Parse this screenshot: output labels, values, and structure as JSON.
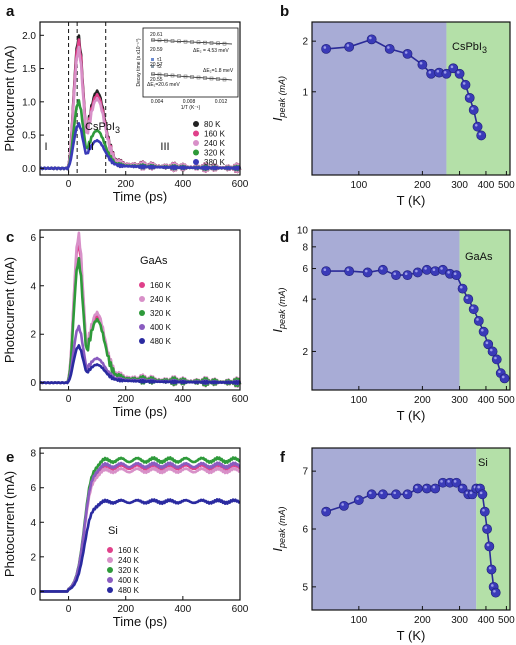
{
  "chart_data": [
    {
      "id": "a",
      "type": "line",
      "panel_label": "a",
      "xlabel": "Time (ps)",
      "ylabel": "Photocurrent (mA)",
      "xlim": [
        -100,
        600
      ],
      "ylim": [
        -0.1,
        2.2
      ],
      "xticks": [
        "0",
        "200",
        "400",
        "600"
      ],
      "yticks": [
        "0.0",
        "0.5",
        "1.0",
        "1.5",
        "2.0"
      ],
      "material": "CsPbI3",
      "regions": [
        "I",
        "II",
        "III"
      ],
      "region_bounds_ps": [
        0,
        30,
        130
      ],
      "series": [
        {
          "name": "80 K",
          "color": "#222222",
          "peak": 1.8,
          "hump": 1.05,
          "floor": 0.18
        },
        {
          "name": "160 K",
          "color": "#e0408a",
          "peak": 1.75,
          "hump": 1.0,
          "floor": 0.17
        },
        {
          "name": "240 K",
          "color": "#d890c8",
          "peak": 1.65,
          "hump": 0.95,
          "floor": 0.16
        },
        {
          "name": "320 K",
          "color": "#2e9a3a",
          "peak": 0.9,
          "hump": 0.5,
          "floor": 0.12
        },
        {
          "name": "380 K",
          "color": "#3a3ab8",
          "peak": 0.58,
          "hump": 0.36,
          "floor": 0.1
        }
      ],
      "inset": {
        "xlabel": "1/T (K⁻¹)",
        "ylabel": "Decay time (s x10⁻¹°)",
        "xticks": [
          "0.004",
          "0.008",
          "0.012"
        ],
        "yticks": [
          "20.61",
          "20.59",
          "20.57",
          "20.55"
        ],
        "legend": [
          "τ1",
          "τ2"
        ],
        "annotations": [
          "ΔE₂ = 4.53 meV",
          "ΔE₂=1.8 meV",
          "ΔE₁=20.6 meV"
        ]
      }
    },
    {
      "id": "b",
      "type": "scatter",
      "panel_label": "b",
      "xlabel": "T (K)",
      "ylabel": "I_peak (mA)",
      "xscale": "log",
      "yscale": "log",
      "xlim": [
        60,
        520
      ],
      "ylim": [
        0.32,
        2.6
      ],
      "xticks": [
        100,
        200,
        300,
        400,
        500
      ],
      "yticks": [
        1,
        2
      ],
      "material": "CsPbI3",
      "phase_boundary_K": 260,
      "phase_colors": [
        "#a8acd6",
        "#b4e0a8"
      ],
      "x": [
        70,
        90,
        115,
        140,
        170,
        200,
        220,
        240,
        260,
        280,
        300,
        320,
        335,
        350,
        365,
        380
      ],
      "y": [
        1.8,
        1.85,
        2.05,
        1.8,
        1.68,
        1.45,
        1.28,
        1.3,
        1.28,
        1.38,
        1.28,
        1.1,
        0.92,
        0.78,
        0.62,
        0.55
      ]
    },
    {
      "id": "c",
      "type": "line",
      "panel_label": "c",
      "xlabel": "Time (ps)",
      "ylabel": "Photocurrent (mA)",
      "xlim": [
        -100,
        600
      ],
      "ylim": [
        -0.3,
        6.3
      ],
      "xticks": [
        "0",
        "200",
        "400",
        "600"
      ],
      "yticks": [
        "0",
        "2",
        "4",
        "6"
      ],
      "material": "GaAs",
      "series": [
        {
          "name": "160 K",
          "color": "#e0408a",
          "peak": 5.3,
          "hump": 2.4,
          "floor": 0.6
        },
        {
          "name": "240 K",
          "color": "#d890c8",
          "peak": 5.5,
          "hump": 2.5,
          "floor": 0.65
        },
        {
          "name": "320 K",
          "color": "#2e9a3a",
          "peak": 4.6,
          "hump": 2.3,
          "floor": 0.5
        },
        {
          "name": "400 K",
          "color": "#8a5cc0",
          "peak": 2.0,
          "hump": 0.8,
          "floor": 0.35
        },
        {
          "name": "480 K",
          "color": "#2a2aa0",
          "peak": 1.3,
          "hump": 0.6,
          "floor": 0.25
        }
      ]
    },
    {
      "id": "d",
      "type": "scatter",
      "panel_label": "d",
      "xlabel": "T (K)",
      "ylabel": "I_peak (mA)",
      "xscale": "log",
      "yscale": "log",
      "xlim": [
        60,
        520
      ],
      "ylim": [
        1.2,
        10
      ],
      "xticks": [
        100,
        200,
        300,
        400,
        500
      ],
      "yticks": [
        2,
        4,
        6,
        8,
        10
      ],
      "material": "GaAs",
      "phase_boundary_K": 300,
      "phase_colors": [
        "#a8acd6",
        "#b4e0a8"
      ],
      "x": [
        70,
        90,
        110,
        130,
        150,
        170,
        190,
        210,
        230,
        250,
        270,
        290,
        310,
        330,
        350,
        370,
        390,
        410,
        430,
        450,
        470,
        490
      ],
      "y": [
        5.8,
        5.8,
        5.7,
        5.9,
        5.5,
        5.5,
        5.7,
        5.9,
        5.8,
        5.9,
        5.6,
        5.5,
        4.6,
        4.0,
        3.5,
        3.0,
        2.6,
        2.2,
        2.0,
        1.8,
        1.5,
        1.4
      ]
    },
    {
      "id": "e",
      "type": "line",
      "panel_label": "e",
      "xlabel": "Time (ps)",
      "ylabel": "Photocurrent (mA)",
      "xlim": [
        -100,
        600
      ],
      "ylim": [
        -0.5,
        8.3
      ],
      "xticks": [
        "0",
        "200",
        "400",
        "600"
      ],
      "yticks": [
        "0",
        "2",
        "4",
        "6",
        "8"
      ],
      "material": "Si",
      "series": [
        {
          "name": "160 K",
          "color": "#e0408a",
          "plateau": 7.2
        },
        {
          "name": "240 K",
          "color": "#d890c8",
          "plateau": 7.0
        },
        {
          "name": "320 K",
          "color": "#2e9a3a",
          "plateau": 7.6
        },
        {
          "name": "400 K",
          "color": "#8a5cc0",
          "plateau": 7.3
        },
        {
          "name": "480 K",
          "color": "#2a2aa0",
          "plateau": 5.2
        }
      ]
    },
    {
      "id": "f",
      "type": "scatter",
      "panel_label": "f",
      "xlabel": "T (K)",
      "ylabel": "I_peak (mA)",
      "xscale": "log",
      "yscale": "linear",
      "xlim": [
        60,
        520
      ],
      "ylim": [
        4.6,
        7.4
      ],
      "xticks": [
        100,
        200,
        300,
        400,
        500
      ],
      "yticks": [
        5,
        6,
        7
      ],
      "material": "Si",
      "phase_boundary_K": 360,
      "phase_colors": [
        "#a8acd6",
        "#b4e0a8"
      ],
      "x": [
        70,
        85,
        100,
        115,
        130,
        150,
        170,
        190,
        210,
        230,
        250,
        270,
        290,
        310,
        330,
        345,
        360,
        375,
        385,
        395,
        405,
        415,
        425,
        435,
        445
      ],
      "y": [
        6.3,
        6.4,
        6.5,
        6.6,
        6.6,
        6.6,
        6.6,
        6.7,
        6.7,
        6.7,
        6.8,
        6.8,
        6.8,
        6.7,
        6.6,
        6.6,
        6.7,
        6.7,
        6.6,
        6.3,
        6.0,
        5.7,
        5.3,
        5.0,
        4.9
      ]
    }
  ],
  "colors": {
    "marker": "#3a3ab8",
    "marker_line": "#2a2a98",
    "axis": "#111111"
  }
}
